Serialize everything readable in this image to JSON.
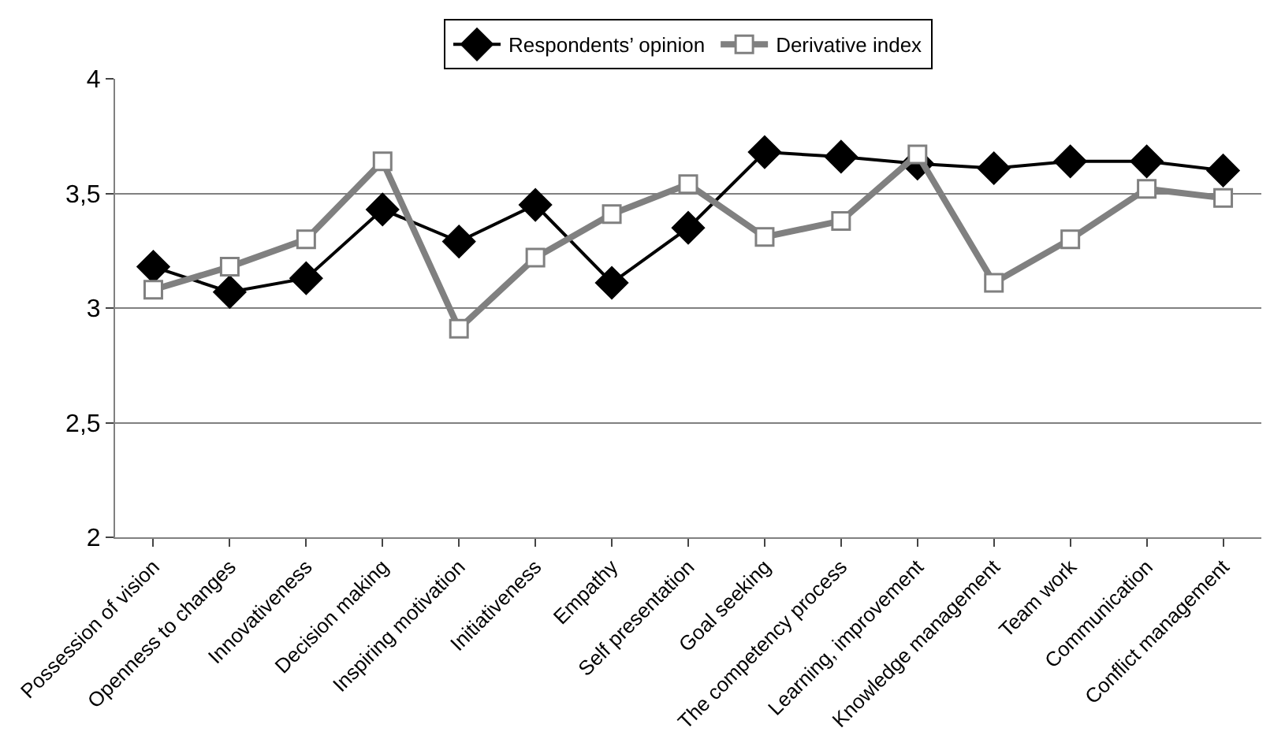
{
  "chart_data": {
    "type": "line",
    "categories": [
      "Possession of vision",
      "Openness to changes",
      "Innovativeness",
      "Decision making",
      "Inspiring motivation",
      "Initiativeness",
      "Empathy",
      "Self presentation",
      "Goal seeking",
      "The competency process",
      "Learning, improvement",
      "Knowledge management",
      "Team work",
      "Communication",
      "Conflict management"
    ],
    "series": [
      {
        "name": "Respondents’ opinion",
        "color": "#000000",
        "marker": "diamond",
        "values": [
          3.18,
          3.07,
          3.13,
          3.43,
          3.29,
          3.45,
          3.11,
          3.35,
          3.68,
          3.66,
          3.63,
          3.61,
          3.64,
          3.64,
          3.6
        ]
      },
      {
        "name": "Derivative index",
        "color": "#808080",
        "marker": "square",
        "values": [
          3.08,
          3.18,
          3.3,
          3.64,
          2.91,
          3.22,
          3.41,
          3.54,
          3.31,
          3.38,
          3.67,
          3.11,
          3.3,
          3.52,
          3.48
        ]
      }
    ],
    "ylim": [
      2,
      4
    ],
    "yticks": [
      2,
      {
        "value": 2.5,
        "label": "2,5"
      },
      3,
      {
        "value": 3.5,
        "label": "3,5"
      },
      4
    ],
    "grid": "y",
    "legend": "top"
  }
}
